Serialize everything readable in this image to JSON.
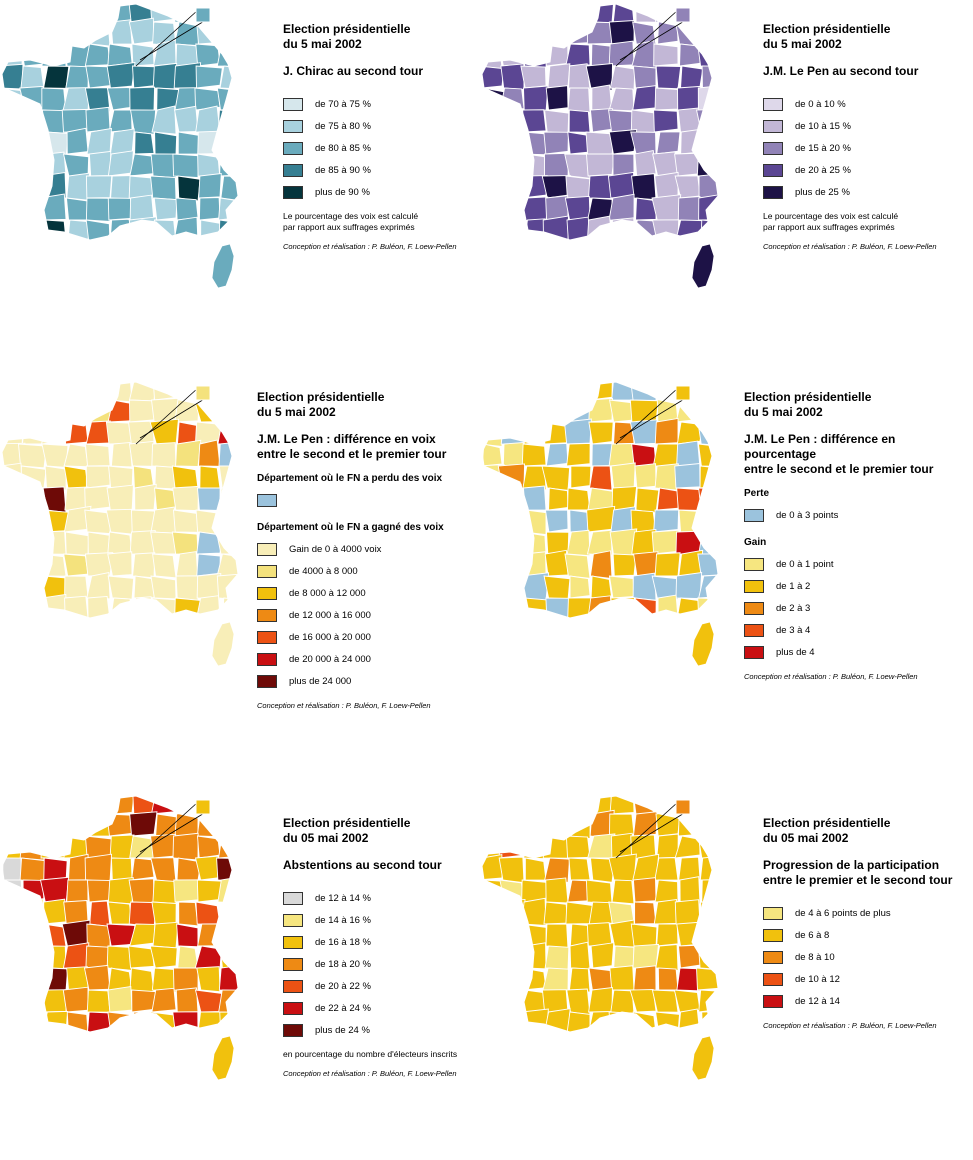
{
  "panels": [
    {
      "id": "chirac",
      "title": "Election présidentielle\ndu 5 mai 2002",
      "subtitle": "J. Chirac au second tour",
      "groups": [
        {
          "header": "",
          "items": [
            {
              "label": "de 70 à 75 %",
              "color": "#d6e7ec"
            },
            {
              "label": "de 75 à 80 %",
              "color": "#a8d1de"
            },
            {
              "label": "de 80 à 85 %",
              "color": "#6aabbd"
            },
            {
              "label": "de 85 à 90 %",
              "color": "#367f92"
            },
            {
              "label": "plus de 90 %",
              "color": "#05343c"
            }
          ]
        }
      ],
      "note": "Le pourcentage des voix est calculé\npar rapport aux suffrages exprimés",
      "credit": "Conception et réalisation : P. Buléon, F. Loew-Pellen",
      "map_weights": [
        0.02,
        0.42,
        0.4,
        0.14,
        0.02
      ]
    },
    {
      "id": "lepen",
      "title": "Election présidentielle\ndu 5 mai 2002",
      "subtitle": "J.M. Le Pen au second tour",
      "groups": [
        {
          "header": "",
          "items": [
            {
              "label": "de 0 à 10 %",
              "color": "#ded8ea"
            },
            {
              "label": "de 10 à 15 %",
              "color": "#c2b7d6"
            },
            {
              "label": "de 15 à 20 %",
              "color": "#9183b7"
            },
            {
              "label": "de 20 à 25 %",
              "color": "#5b4693"
            },
            {
              "label": "plus de 25 %",
              "color": "#1d1246"
            }
          ]
        }
      ],
      "note": "Le pourcentage des voix est calculé\npar rapport aux suffrages exprimés",
      "credit": "Conception et réalisation : P. Buléon, F. Loew-Pellen",
      "map_weights": [
        0.05,
        0.35,
        0.25,
        0.25,
        0.1
      ]
    },
    {
      "id": "diffvoix",
      "title": "Election présidentielle\ndu 5 mai 2002",
      "subtitle": "J.M. Le Pen : différence en voix\nentre le second et le premier tour",
      "groups": [
        {
          "header": "Département où le FN a perdu des voix",
          "items": [
            {
              "label": "",
              "color": "#9bc3dd"
            }
          ]
        },
        {
          "header": "Département où le FN a gagné des voix",
          "items": [
            {
              "label": "Gain de 0 à 4000 voix",
              "color": "#f8eeb8"
            },
            {
              "label": "de 4000 à 8 000",
              "color": "#f4e27d"
            },
            {
              "label": "de 8 000 à 12 000",
              "color": "#f1c10d"
            },
            {
              "label": "de 12 000 à 16 000",
              "color": "#ee8a14"
            },
            {
              "label": "de 16 000 à 20 000",
              "color": "#ec5214"
            },
            {
              "label": "de 20 000 à 24 000",
              "color": "#c90f12"
            },
            {
              "label": "plus de 24 000",
              "color": "#6e0a07"
            }
          ]
        }
      ],
      "note": "",
      "credit": "Conception et réalisation : P. Buléon, F. Loew-Pellen",
      "map_weights": [
        0.03,
        0.7,
        0.12,
        0.06,
        0.04,
        0.02,
        0.02,
        0.01
      ]
    },
    {
      "id": "diffpct",
      "title": "Election présidentielle\ndu 5 mai 2002",
      "subtitle": "J.M. Le Pen : différence en pourcentage\nentre le second et le premier tour",
      "groups": [
        {
          "header": "Perte",
          "items": [
            {
              "label": "de 0 à 3 points",
              "color": "#9bc3dd"
            }
          ]
        },
        {
          "header": "Gain",
          "items": [
            {
              "label": "de 0 à 1 point",
              "color": "#f6e680"
            },
            {
              "label": "de 1 à 2",
              "color": "#f1c10d"
            },
            {
              "label": "de 2 à 3",
              "color": "#ee8a14"
            },
            {
              "label": "de 3 à 4",
              "color": "#ec5214"
            },
            {
              "label": "plus de 4",
              "color": "#c90f12"
            }
          ]
        }
      ],
      "note": "",
      "credit": "Conception et réalisation : P. Buléon, F. Loew-Pellen",
      "map_weights": [
        0.22,
        0.28,
        0.32,
        0.1,
        0.04,
        0.04
      ]
    },
    {
      "id": "abstentions",
      "title": "Election présidentielle\ndu 05 mai 2002",
      "subtitle": "Abstentions au second tour",
      "groups": [
        {
          "header": "",
          "items": [
            {
              "label": "de 12 à 14 %",
              "color": "#d9d9d9"
            },
            {
              "label": "de 14 à 16 %",
              "color": "#f6e680"
            },
            {
              "label": "de 16 à 18 %",
              "color": "#f1c10d"
            },
            {
              "label": "de 18 à 20 %",
              "color": "#ee8a14"
            },
            {
              "label": "de 20 à 22 %",
              "color": "#ec5214"
            },
            {
              "label": "de 22 à 24 %",
              "color": "#c90f12"
            },
            {
              "label": "plus de 24 %",
              "color": "#6e0a07"
            }
          ]
        }
      ],
      "note": "en pourcentage du nombre d'électeurs inscrits",
      "credit": "Conception et réalisation : P. Buléon, F. Loew-Pellen",
      "map_weights": [
        0.02,
        0.08,
        0.32,
        0.38,
        0.12,
        0.06,
        0.02
      ]
    },
    {
      "id": "participation",
      "title": "Election présidentielle\ndu 05 mai 2002",
      "subtitle": "Progression de la participation\nentre le premier et le second tour",
      "groups": [
        {
          "header": "",
          "items": [
            {
              "label": "de 4 à 6 points de plus",
              "color": "#f6e680"
            },
            {
              "label": "de 6 à 8",
              "color": "#f1c10d"
            },
            {
              "label": "de 8 à 10",
              "color": "#ee8a14"
            },
            {
              "label": "de 10 à 12",
              "color": "#ec5214"
            },
            {
              "label": "de 12 à 14",
              "color": "#c90f12"
            }
          ]
        }
      ],
      "note": "",
      "credit": "Conception et réalisation : P. Buléon, F. Loew-Pellen",
      "map_weights": [
        0.08,
        0.76,
        0.12,
        0.02,
        0.02
      ]
    }
  ]
}
